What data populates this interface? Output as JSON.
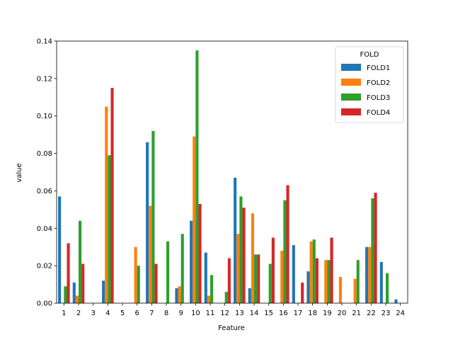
{
  "chart_data": {
    "type": "bar",
    "title": "",
    "xlabel": "Feature",
    "ylabel": "value",
    "ylim": [
      0,
      0.14
    ],
    "yticks": [
      "0.00",
      "0.02",
      "0.04",
      "0.06",
      "0.08",
      "0.10",
      "0.12",
      "0.14"
    ],
    "ytick_values": [
      0,
      0.02,
      0.04,
      0.06,
      0.08,
      0.1,
      0.12,
      0.14
    ],
    "categories": [
      "1",
      "2",
      "3",
      "4",
      "5",
      "6",
      "7",
      "8",
      "9",
      "10",
      "11",
      "12",
      "13",
      "14",
      "15",
      "16",
      "17",
      "18",
      "19",
      "20",
      "21",
      "22",
      "23",
      "24"
    ],
    "legend": {
      "title": "FOLD",
      "position": "top-right"
    },
    "grid": false,
    "series": [
      {
        "name": "FOLD1",
        "color": "#1f77b4",
        "values": [
          0.057,
          0.011,
          0,
          0.012,
          0,
          0,
          0.086,
          0,
          0.008,
          0.044,
          0.027,
          0,
          0.067,
          0.008,
          0,
          0,
          0.031,
          0.017,
          0,
          0,
          0,
          0.03,
          0.022,
          0.002
        ]
      },
      {
        "name": "FOLD2",
        "color": "#ff7f0e",
        "values": [
          0,
          0.004,
          0,
          0.105,
          0,
          0.03,
          0.052,
          0,
          0.009,
          0.089,
          0.004,
          0,
          0.037,
          0.048,
          0,
          0.028,
          0,
          0.033,
          0.023,
          0.014,
          0.013,
          0.03,
          0,
          0
        ]
      },
      {
        "name": "FOLD3",
        "color": "#2ca02c",
        "values": [
          0.009,
          0.044,
          0,
          0.079,
          0,
          0.02,
          0.092,
          0.033,
          0.037,
          0.135,
          0.015,
          0.006,
          0.057,
          0.026,
          0.021,
          0.055,
          0,
          0.034,
          0.023,
          0,
          0.023,
          0.056,
          0.016,
          0
        ]
      },
      {
        "name": "FOLD4",
        "color": "#d62728",
        "values": [
          0.032,
          0.021,
          0,
          0.115,
          0,
          0,
          0.021,
          0,
          0,
          0.053,
          0,
          0.024,
          0.051,
          0.026,
          0.035,
          0.063,
          0.011,
          0.024,
          0.035,
          0,
          0,
          0.059,
          0,
          0
        ]
      }
    ]
  }
}
